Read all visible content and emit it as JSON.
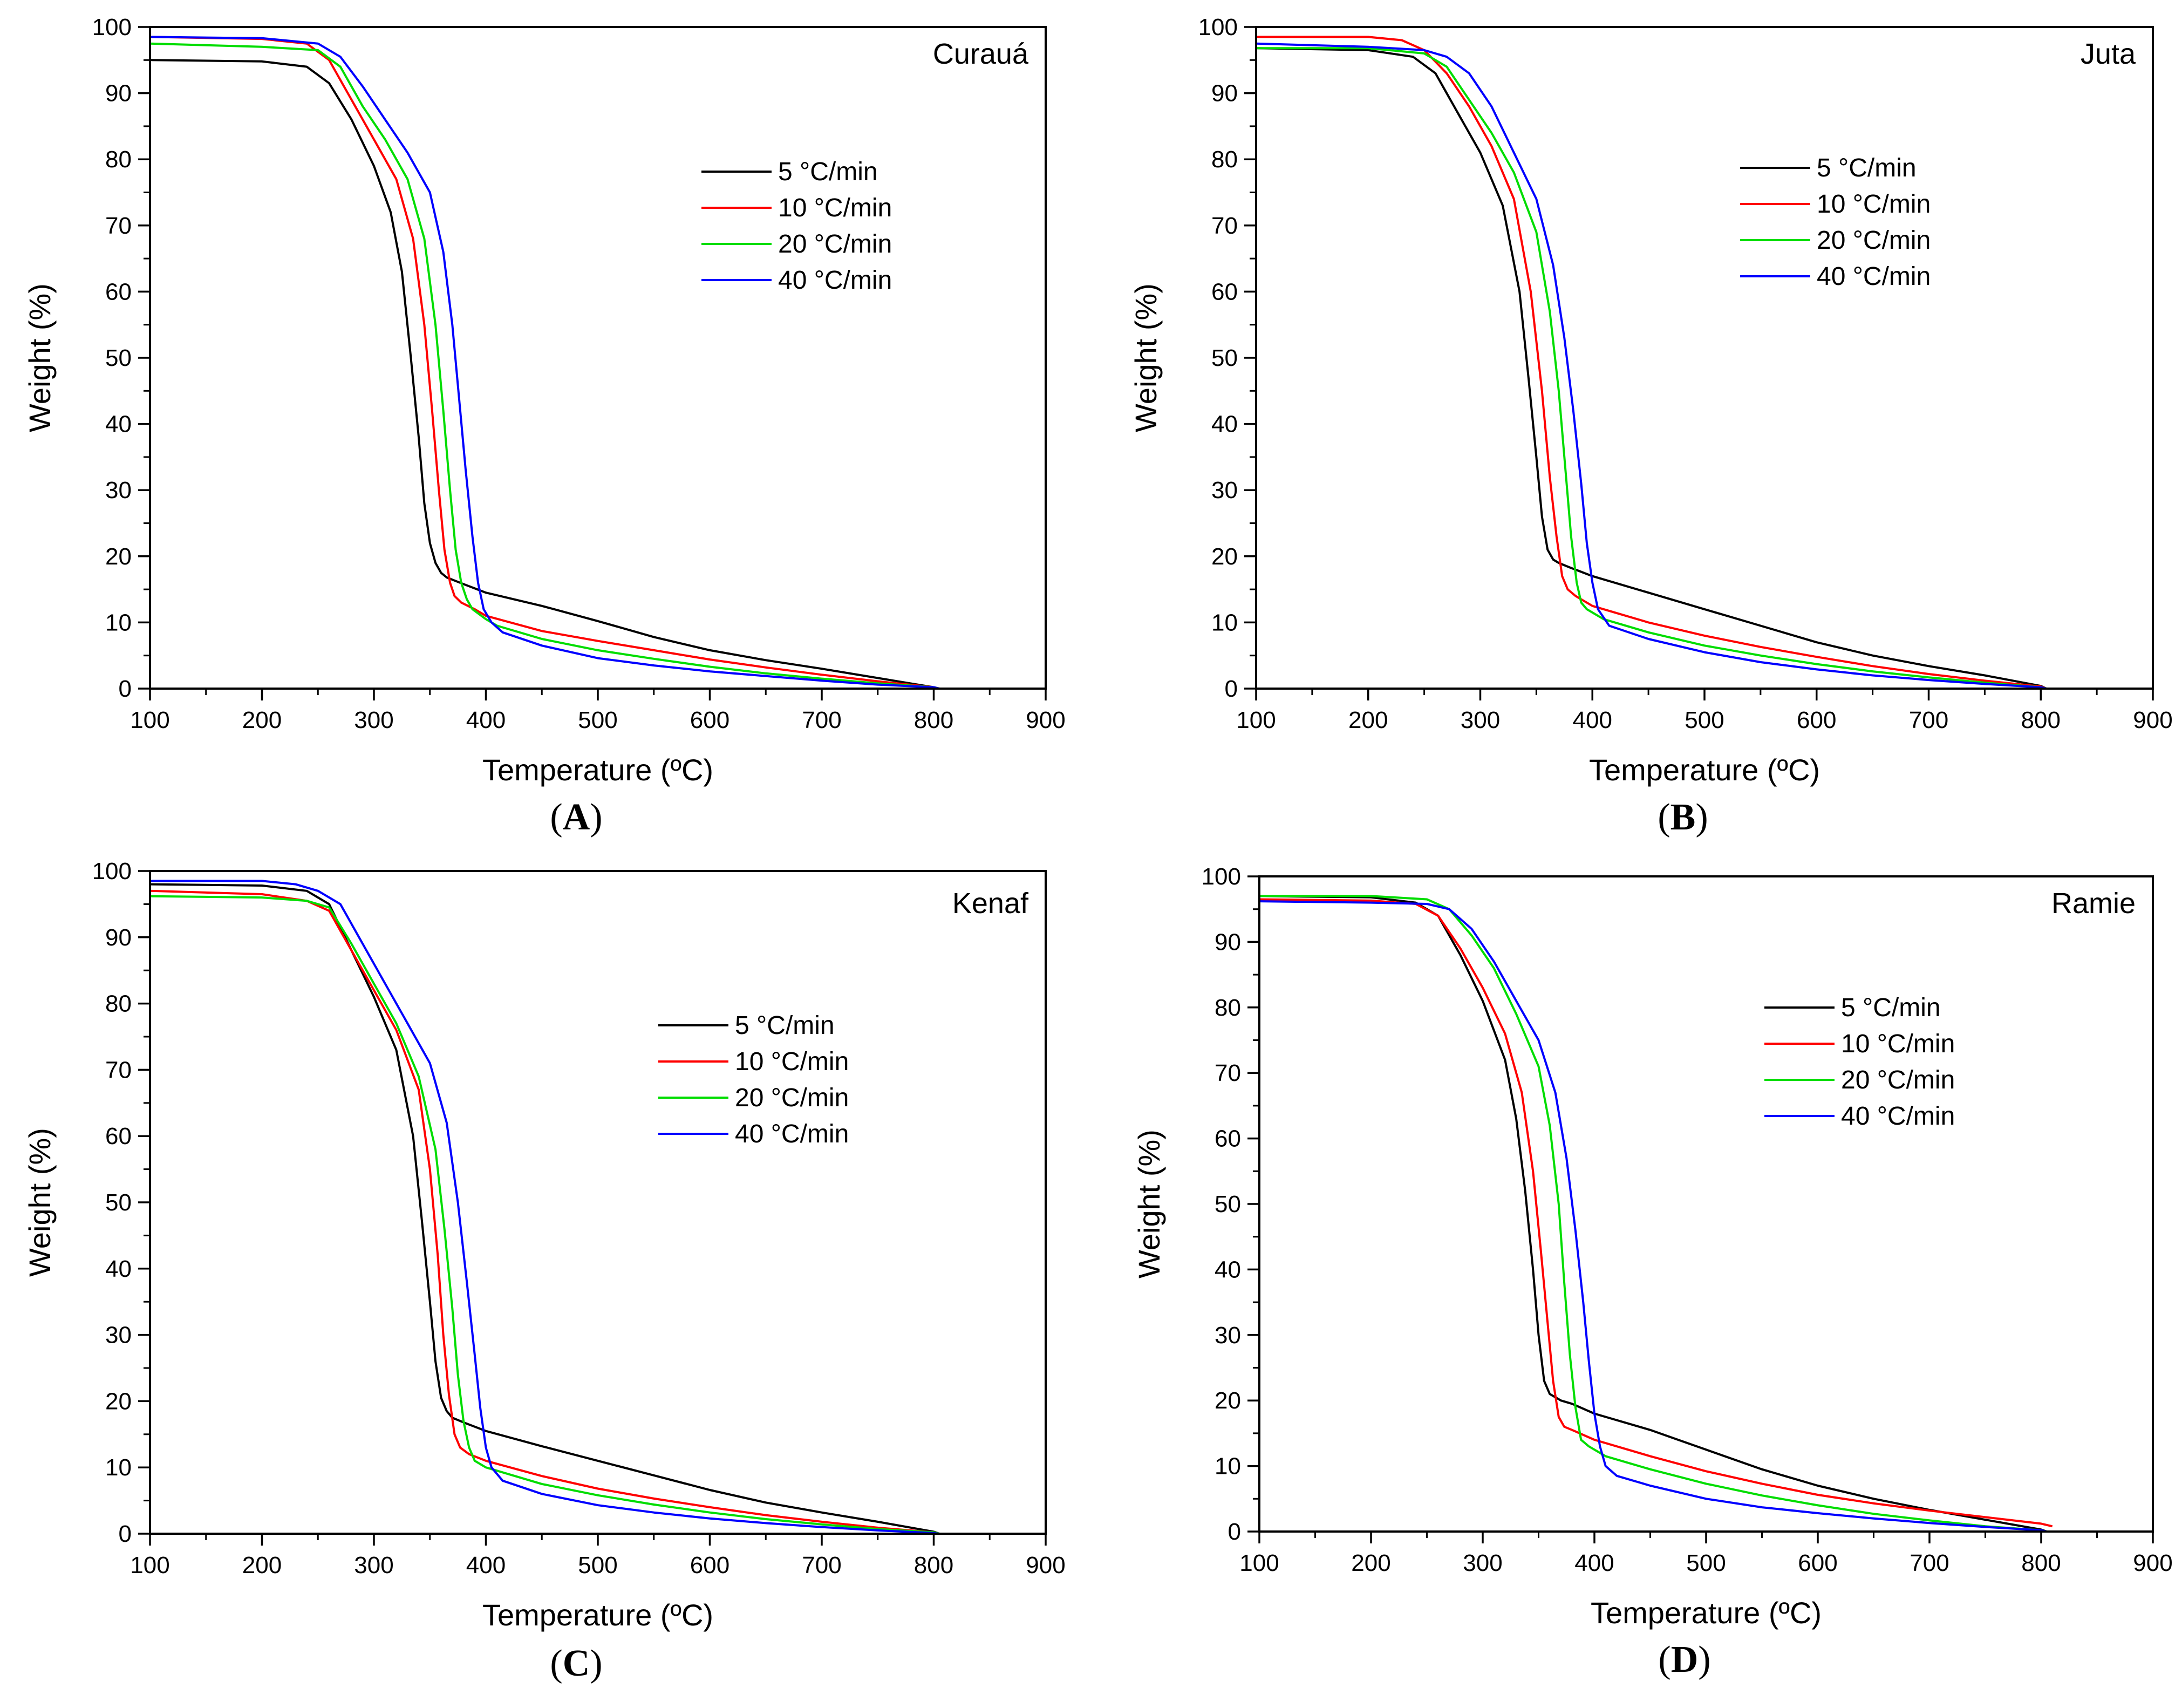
{
  "figure": {
    "legend_title": "",
    "heating_rates": [
      "5 °C/min",
      "10 °C/min",
      "20 °C/min",
      "40 °C/min"
    ],
    "series_colors": [
      "#000000",
      "#ff0000",
      "#00dd00",
      "#0000ff"
    ]
  },
  "chart_data": [
    {
      "type": "line",
      "panel_label": "A",
      "title": "Curauá",
      "xlabel": "Temperature (ºC)",
      "ylabel": "Weight (%)",
      "xlim": [
        100,
        900
      ],
      "ylim": [
        0,
        100
      ],
      "xticks": [
        100,
        200,
        300,
        400,
        500,
        600,
        700,
        800,
        900
      ],
      "yticks": [
        0,
        10,
        20,
        30,
        40,
        50,
        60,
        70,
        80,
        90,
        100
      ],
      "legend_position": "upper-right",
      "series": [
        {
          "name": "5 °C/min",
          "color": "#000000",
          "x": [
            100,
            200,
            240,
            260,
            280,
            300,
            315,
            325,
            333,
            340,
            345,
            350,
            355,
            360,
            365,
            380,
            400,
            450,
            500,
            550,
            600,
            650,
            700,
            750,
            800,
            805
          ],
          "y": [
            95,
            94.8,
            94,
            91.5,
            86,
            79,
            72,
            63,
            50,
            38,
            28,
            22,
            19,
            17.5,
            16.8,
            15.8,
            14.5,
            12.5,
            10.2,
            7.8,
            5.8,
            4.3,
            3,
            1.6,
            0.2,
            0
          ]
        },
        {
          "name": "10 °C/min",
          "color": "#ff0000",
          "x": [
            100,
            200,
            240,
            260,
            280,
            300,
            320,
            335,
            345,
            352,
            358,
            363,
            368,
            372,
            378,
            390,
            400,
            450,
            500,
            550,
            600,
            650,
            700,
            750,
            800,
            805
          ],
          "y": [
            98.5,
            98.2,
            97.5,
            95,
            89,
            83,
            77,
            68,
            55,
            42,
            30,
            21,
            16,
            14,
            13,
            12,
            11,
            8.7,
            7.2,
            5.8,
            4.4,
            3.2,
            2.1,
            1.1,
            0.2,
            0
          ]
        },
        {
          "name": "20 °C/min",
          "color": "#00dd00",
          "x": [
            100,
            200,
            250,
            270,
            290,
            310,
            330,
            345,
            355,
            362,
            368,
            373,
            378,
            383,
            388,
            400,
            410,
            450,
            500,
            550,
            600,
            650,
            700,
            750,
            800,
            805
          ],
          "y": [
            97.5,
            97,
            96.5,
            94,
            88,
            83,
            77,
            68,
            55,
            42,
            30,
            21,
            16,
            13.5,
            12,
            10.5,
            9.5,
            7.5,
            5.8,
            4.5,
            3.3,
            2.3,
            1.5,
            0.8,
            0.2,
            0
          ]
        },
        {
          "name": "40 °C/min",
          "color": "#0000ff",
          "x": [
            100,
            200,
            250,
            270,
            290,
            310,
            330,
            350,
            362,
            370,
            376,
            382,
            388,
            393,
            398,
            405,
            415,
            450,
            500,
            550,
            600,
            650,
            700,
            750,
            800,
            805
          ],
          "y": [
            98.5,
            98.3,
            97.5,
            95.5,
            91,
            86,
            81,
            75,
            66,
            55,
            44,
            33,
            23,
            16,
            12,
            10,
            8.5,
            6.5,
            4.6,
            3.5,
            2.6,
            1.9,
            1.2,
            0.6,
            0.2,
            0
          ]
        }
      ]
    },
    {
      "type": "line",
      "panel_label": "B",
      "title": "Juta",
      "xlabel": "Temperature (ºC)",
      "ylabel": "Weight (%)",
      "xlim": [
        100,
        900
      ],
      "ylim": [
        0,
        100
      ],
      "xticks": [
        100,
        200,
        300,
        400,
        500,
        600,
        700,
        800,
        900
      ],
      "yticks": [
        0,
        10,
        20,
        30,
        40,
        50,
        60,
        70,
        80,
        90,
        100
      ],
      "legend_position": "upper-right",
      "series": [
        {
          "name": "5 °C/min",
          "color": "#000000",
          "x": [
            100,
            200,
            240,
            260,
            280,
            300,
            320,
            335,
            343,
            350,
            355,
            360,
            365,
            370,
            380,
            400,
            450,
            500,
            550,
            600,
            650,
            700,
            750,
            800,
            805
          ],
          "y": [
            96.8,
            96.5,
            95.5,
            93,
            87,
            81,
            73,
            60,
            47,
            35,
            26,
            21,
            19.5,
            19,
            18.3,
            17,
            14.5,
            12,
            9.5,
            7,
            5,
            3.4,
            2,
            0.4,
            0
          ]
        },
        {
          "name": "10 °C/min",
          "color": "#ff0000",
          "x": [
            100,
            200,
            230,
            250,
            270,
            290,
            310,
            330,
            345,
            355,
            362,
            368,
            373,
            378,
            385,
            400,
            450,
            500,
            550,
            600,
            650,
            700,
            750,
            800,
            805
          ],
          "y": [
            98.5,
            98.5,
            98,
            96.5,
            93,
            88,
            82,
            74,
            60,
            45,
            32,
            23,
            17,
            15,
            14,
            12.5,
            10,
            8,
            6.3,
            4.8,
            3.4,
            2.2,
            1.2,
            0.3,
            0
          ]
        },
        {
          "name": "20 °C/min",
          "color": "#00dd00",
          "x": [
            100,
            200,
            250,
            270,
            290,
            310,
            330,
            350,
            362,
            370,
            376,
            381,
            386,
            390,
            395,
            410,
            450,
            500,
            550,
            600,
            650,
            700,
            750,
            800,
            805
          ],
          "y": [
            96.8,
            96.8,
            96,
            94,
            89,
            84,
            78,
            69,
            57,
            45,
            33,
            23,
            16,
            13,
            12,
            10.5,
            8.5,
            6.5,
            5,
            3.7,
            2.6,
            1.7,
            0.9,
            0.2,
            0
          ]
        },
        {
          "name": "40 °C/min",
          "color": "#0000ff",
          "x": [
            100,
            200,
            250,
            270,
            290,
            310,
            330,
            350,
            365,
            375,
            383,
            390,
            395,
            400,
            405,
            415,
            450,
            500,
            550,
            600,
            650,
            700,
            750,
            800,
            805
          ],
          "y": [
            97.5,
            97,
            96.5,
            95.5,
            93,
            88,
            81,
            74,
            64,
            53,
            42,
            31,
            22,
            16,
            12,
            9.5,
            7.5,
            5.5,
            4,
            2.9,
            2,
            1.3,
            0.7,
            0.2,
            0
          ]
        }
      ]
    },
    {
      "type": "line",
      "panel_label": "C",
      "title": "Kenaf",
      "xlabel": "Temperature (ºC)",
      "ylabel": "Weight (%)",
      "xlim": [
        100,
        900
      ],
      "ylim": [
        0,
        100
      ],
      "xticks": [
        100,
        200,
        300,
        400,
        500,
        600,
        700,
        800,
        900
      ],
      "yticks": [
        0,
        10,
        20,
        30,
        40,
        50,
        60,
        70,
        80,
        90,
        100
      ],
      "legend_position": "right",
      "series": [
        {
          "name": "5 °C/min",
          "color": "#000000",
          "x": [
            100,
            200,
            240,
            260,
            280,
            300,
            320,
            335,
            343,
            350,
            355,
            360,
            365,
            370,
            380,
            400,
            450,
            500,
            550,
            600,
            650,
            700,
            750,
            800,
            805
          ],
          "y": [
            98,
            97.8,
            97,
            95,
            88,
            81,
            73,
            60,
            47,
            35,
            26,
            20.5,
            18.5,
            17.5,
            16.8,
            15.5,
            13.2,
            11,
            8.8,
            6.6,
            4.7,
            3.2,
            1.8,
            0.3,
            0
          ]
        },
        {
          "name": "10 °C/min",
          "color": "#ff0000",
          "x": [
            100,
            200,
            240,
            260,
            280,
            300,
            320,
            340,
            350,
            357,
            362,
            367,
            372,
            377,
            385,
            400,
            450,
            500,
            550,
            600,
            650,
            700,
            750,
            800,
            805
          ],
          "y": [
            97,
            96.5,
            95.5,
            94,
            88,
            82,
            76,
            67,
            55,
            42,
            30,
            21,
            15,
            13,
            12,
            11,
            8.7,
            6.8,
            5.3,
            4,
            2.8,
            1.8,
            0.9,
            0.2,
            0
          ]
        },
        {
          "name": "20 °C/min",
          "color": "#00dd00",
          "x": [
            100,
            200,
            240,
            260,
            280,
            300,
            320,
            340,
            355,
            363,
            370,
            375,
            380,
            385,
            390,
            400,
            450,
            500,
            550,
            600,
            650,
            700,
            750,
            800,
            805
          ],
          "y": [
            96.2,
            96,
            95.5,
            94.5,
            89,
            83,
            77,
            69,
            58,
            46,
            34,
            24,
            17,
            13,
            11,
            10,
            7.5,
            5.8,
            4.4,
            3.2,
            2.2,
            1.4,
            0.7,
            0.2,
            0
          ]
        },
        {
          "name": "40 °C/min",
          "color": "#0000ff",
          "x": [
            100,
            200,
            230,
            250,
            270,
            290,
            310,
            330,
            350,
            365,
            375,
            383,
            390,
            395,
            400,
            405,
            415,
            450,
            500,
            550,
            600,
            650,
            700,
            750,
            800,
            805
          ],
          "y": [
            98.5,
            98.5,
            98,
            97,
            95,
            89,
            83,
            77,
            71,
            62,
            50,
            38,
            27,
            19,
            13,
            10,
            8,
            6,
            4.3,
            3.2,
            2.3,
            1.6,
            1,
            0.5,
            0.1,
            0
          ]
        }
      ]
    },
    {
      "type": "line",
      "panel_label": "D",
      "title": "Ramie",
      "xlabel": "Temperature (ºC)",
      "ylabel": "Weight (%)",
      "xlim": [
        100,
        900
      ],
      "ylim": [
        0,
        100
      ],
      "xticks": [
        100,
        200,
        300,
        400,
        500,
        600,
        700,
        800,
        900
      ],
      "yticks": [
        0,
        10,
        20,
        30,
        40,
        50,
        60,
        70,
        80,
        90,
        100
      ],
      "legend_position": "upper-right",
      "series": [
        {
          "name": "5 °C/min",
          "color": "#000000",
          "x": [
            100,
            200,
            240,
            260,
            280,
            300,
            320,
            330,
            338,
            345,
            350,
            355,
            360,
            365,
            370,
            380,
            400,
            450,
            500,
            550,
            600,
            650,
            700,
            750,
            800,
            805
          ],
          "y": [
            97,
            96.8,
            96,
            94,
            88,
            81,
            72,
            63,
            52,
            40,
            30,
            23,
            21,
            20.5,
            20,
            19.5,
            18,
            15.5,
            12.5,
            9.5,
            7,
            5,
            3.3,
            1.8,
            0.3,
            0
          ]
        },
        {
          "name": "10 °C/min",
          "color": "#ff0000",
          "x": [
            100,
            200,
            240,
            260,
            280,
            300,
            320,
            335,
            345,
            352,
            358,
            363,
            368,
            373,
            380,
            400,
            450,
            500,
            550,
            600,
            650,
            700,
            750,
            800,
            810
          ],
          "y": [
            96.5,
            96.3,
            95.8,
            94,
            89,
            83,
            76,
            67,
            55,
            43,
            32,
            23,
            17.5,
            16,
            15.5,
            14,
            11.5,
            9.2,
            7.3,
            5.6,
            4.3,
            3.2,
            2.2,
            1.2,
            0.8
          ]
        },
        {
          "name": "20 °C/min",
          "color": "#00dd00",
          "x": [
            100,
            200,
            250,
            270,
            290,
            310,
            330,
            350,
            360,
            368,
            373,
            378,
            383,
            388,
            395,
            410,
            450,
            500,
            550,
            600,
            650,
            700,
            750,
            800,
            805
          ],
          "y": [
            97,
            97,
            96.5,
            95,
            91,
            86,
            79,
            71,
            62,
            50,
            38,
            27,
            19,
            14,
            13,
            11.5,
            9.5,
            7.3,
            5.5,
            4,
            2.7,
            1.7,
            0.8,
            0.2,
            0
          ]
        },
        {
          "name": "40 °C/min",
          "color": "#0000ff",
          "x": [
            100,
            200,
            250,
            270,
            290,
            310,
            330,
            350,
            365,
            375,
            383,
            390,
            395,
            400,
            405,
            410,
            420,
            450,
            500,
            550,
            600,
            650,
            700,
            750,
            800,
            805
          ],
          "y": [
            96.2,
            96,
            95.8,
            95,
            92,
            87,
            81,
            75,
            67,
            57,
            46,
            35,
            26,
            18,
            13,
            10,
            8.5,
            7,
            5,
            3.7,
            2.8,
            2,
            1.3,
            0.7,
            0.2,
            0
          ]
        }
      ]
    }
  ]
}
